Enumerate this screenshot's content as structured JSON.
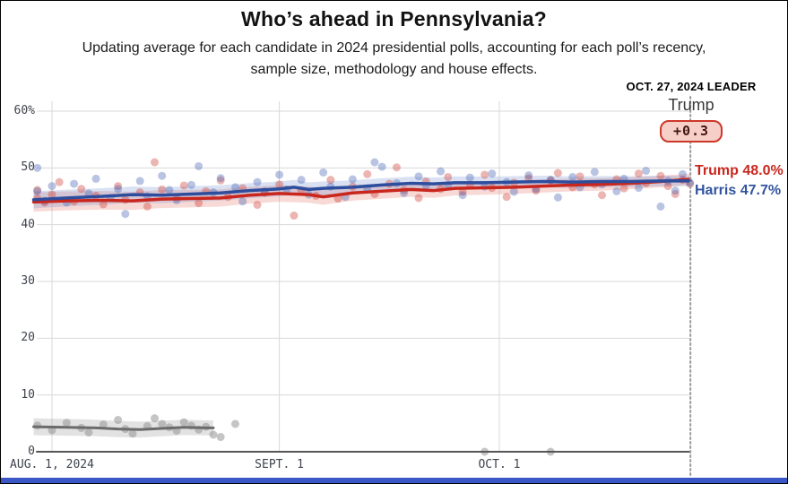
{
  "page": {
    "background": "#ffffff",
    "border_color": "#000000",
    "footer_bar_color": "#3a57c5"
  },
  "header": {
    "title": "Who’s ahead in Pennsylvania?",
    "subtitle": "Updating average for each candidate in 2024 presidential polls, accounting for each poll’s recency, sample size, methodology and house effects."
  },
  "leader": {
    "date_label": "OCT. 27, 2024 LEADER",
    "name": "Trump",
    "margin": "+0.3",
    "badge_bg": "#f7cfc9",
    "badge_border": "#cd3728",
    "badge_text_color": "#45150f"
  },
  "end_labels": {
    "trump": "Trump 48.0%",
    "harris": "Harris 47.7%",
    "trump_color": "#c9271e",
    "harris_color": "#32549f"
  },
  "chart_data": {
    "type": "line",
    "title": "Who’s ahead in Pennsylvania?",
    "grid_on": true,
    "x_axis": {
      "tick_labels": [
        "AUG. 1, 2024",
        "SEPT. 1",
        "OCT. 1"
      ],
      "tick_days": [
        0,
        31,
        61
      ],
      "start_day": -2.5,
      "end_day": 87,
      "end_marker": "dotted-line-oct-27"
    },
    "y_axis": {
      "tick_labels": [
        "0",
        "10",
        "20",
        "30",
        "40",
        "50",
        "60%"
      ],
      "tick_values": [
        0,
        10,
        20,
        30,
        40,
        50,
        60
      ],
      "range": [
        0,
        63
      ]
    },
    "colors": {
      "gridline": "#d9d9d9",
      "axis": "#565656",
      "dotted_line": "#9b9b9b"
    },
    "series": [
      {
        "name": "Trump",
        "final_value": 48.0,
        "color": "#c9271e",
        "band_color": "rgba(223,108,98,0.26)",
        "band_halfwidth_start": 1.7,
        "band_halfwidth_end": 1.0,
        "line_width": 3.5,
        "points": [
          [
            -2.5,
            44.0
          ],
          [
            2,
            44.2
          ],
          [
            7,
            44.3
          ],
          [
            11,
            44.2
          ],
          [
            15,
            44.5
          ],
          [
            19,
            44.6
          ],
          [
            23,
            44.7
          ],
          [
            27,
            45.2
          ],
          [
            31,
            45.5
          ],
          [
            35,
            45.3
          ],
          [
            37,
            44.9
          ],
          [
            41,
            45.6
          ],
          [
            45,
            45.9
          ],
          [
            49,
            46.2
          ],
          [
            52,
            46.0
          ],
          [
            55,
            46.4
          ],
          [
            59,
            46.5
          ],
          [
            63,
            46.6
          ],
          [
            67,
            46.8
          ],
          [
            71,
            47.0
          ],
          [
            75,
            47.1
          ],
          [
            79,
            47.3
          ],
          [
            83,
            47.6
          ],
          [
            87,
            48.0
          ]
        ]
      },
      {
        "name": "Harris",
        "final_value": 47.7,
        "color": "#2e4e9d",
        "band_color": "rgba(110,140,205,0.26)",
        "band_halfwidth_start": 1.5,
        "band_halfwidth_end": 0.9,
        "line_width": 3.5,
        "points": [
          [
            -2.5,
            44.4
          ],
          [
            2,
            44.7
          ],
          [
            7,
            45.0
          ],
          [
            11,
            45.3
          ],
          [
            15,
            45.2
          ],
          [
            19,
            45.4
          ],
          [
            23,
            45.6
          ],
          [
            27,
            46.0
          ],
          [
            31,
            46.3
          ],
          [
            33,
            46.6
          ],
          [
            35,
            46.2
          ],
          [
            37,
            46.4
          ],
          [
            41,
            46.6
          ],
          [
            45,
            47.0
          ],
          [
            49,
            47.3
          ],
          [
            52,
            47.2
          ],
          [
            55,
            47.4
          ],
          [
            59,
            47.4
          ],
          [
            63,
            47.5
          ],
          [
            67,
            47.6
          ],
          [
            71,
            47.5
          ],
          [
            75,
            47.6
          ],
          [
            79,
            47.6
          ],
          [
            83,
            47.7
          ],
          [
            87,
            47.7
          ]
        ]
      },
      {
        "name": "third-party",
        "final_value": 4.2,
        "color": "#6b6b6b",
        "band_color": "rgba(160,160,160,0.30)",
        "band_halfwidth_start": 1.5,
        "band_halfwidth_end": 1.3,
        "line_width": 3,
        "points": [
          [
            -2.5,
            4.4
          ],
          [
            2,
            4.3
          ],
          [
            6,
            4.2
          ],
          [
            9,
            4.0
          ],
          [
            12,
            3.9
          ],
          [
            15,
            4.1
          ],
          [
            18,
            4.3
          ],
          [
            21,
            4.2
          ],
          [
            22,
            4.2
          ]
        ]
      }
    ],
    "scatter": [
      {
        "name": "trump-polls",
        "color": "rgba(205,60,50,0.38)",
        "radius": 4.5,
        "points": [
          [
            -2,
            46.1
          ],
          [
            -2,
            44.6
          ],
          [
            -1,
            43.9
          ],
          [
            0,
            45.3
          ],
          [
            1,
            47.5
          ],
          [
            3,
            44.1
          ],
          [
            4,
            46.3
          ],
          [
            6,
            45.1
          ],
          [
            7,
            43.6
          ],
          [
            9,
            46.8
          ],
          [
            10,
            44.4
          ],
          [
            12,
            45.7
          ],
          [
            13,
            43.2
          ],
          [
            14,
            51.0
          ],
          [
            15,
            46.2
          ],
          [
            17,
            44.8
          ],
          [
            18,
            46.9
          ],
          [
            20,
            43.8
          ],
          [
            21,
            45.9
          ],
          [
            23,
            47.8
          ],
          [
            24,
            44.9
          ],
          [
            26,
            46.4
          ],
          [
            28,
            43.5
          ],
          [
            29,
            45.6
          ],
          [
            31,
            47.1
          ],
          [
            33,
            41.6
          ],
          [
            34,
            46.0
          ],
          [
            36,
            45.1
          ],
          [
            38,
            47.9
          ],
          [
            39,
            44.6
          ],
          [
            41,
            46.7
          ],
          [
            43,
            48.9
          ],
          [
            44,
            45.4
          ],
          [
            46,
            47.2
          ],
          [
            47,
            50.1
          ],
          [
            48,
            46.1
          ],
          [
            50,
            44.7
          ],
          [
            51,
            47.6
          ],
          [
            53,
            46.3
          ],
          [
            54,
            48.4
          ],
          [
            56,
            45.8
          ],
          [
            57,
            47.0
          ],
          [
            59,
            48.8
          ],
          [
            60,
            46.5
          ],
          [
            62,
            44.9
          ],
          [
            63,
            47.4
          ],
          [
            65,
            48.2
          ],
          [
            66,
            46.0
          ],
          [
            68,
            47.8
          ],
          [
            69,
            49.1
          ],
          [
            71,
            46.6
          ],
          [
            72,
            48.5
          ],
          [
            74,
            47.1
          ],
          [
            75,
            45.2
          ],
          [
            77,
            48.0
          ],
          [
            78,
            46.4
          ],
          [
            80,
            49.0
          ],
          [
            81,
            47.3
          ],
          [
            83,
            48.6
          ],
          [
            84,
            46.8
          ],
          [
            85,
            45.4
          ],
          [
            86,
            47.9
          ],
          [
            87,
            47.2
          ]
        ]
      },
      {
        "name": "harris-polls",
        "color": "rgba(70,100,180,0.38)",
        "radius": 4.5,
        "points": [
          [
            -2,
            50.0
          ],
          [
            -2,
            45.9
          ],
          [
            -1,
            44.2
          ],
          [
            0,
            46.8
          ],
          [
            2,
            43.9
          ],
          [
            3,
            47.2
          ],
          [
            5,
            45.5
          ],
          [
            6,
            48.1
          ],
          [
            8,
            44.7
          ],
          [
            9,
            46.3
          ],
          [
            10,
            41.9
          ],
          [
            12,
            47.7
          ],
          [
            13,
            45.0
          ],
          [
            15,
            48.6
          ],
          [
            16,
            46.1
          ],
          [
            17,
            44.3
          ],
          [
            19,
            47.0
          ],
          [
            20,
            50.3
          ],
          [
            22,
            45.7
          ],
          [
            23,
            48.2
          ],
          [
            25,
            46.6
          ],
          [
            26,
            44.1
          ],
          [
            28,
            47.5
          ],
          [
            29,
            45.9
          ],
          [
            31,
            48.8
          ],
          [
            32,
            46.2
          ],
          [
            34,
            47.9
          ],
          [
            35,
            45.3
          ],
          [
            37,
            49.2
          ],
          [
            38,
            46.7
          ],
          [
            40,
            44.9
          ],
          [
            41,
            48.0
          ],
          [
            43,
            46.4
          ],
          [
            44,
            51.0
          ],
          [
            45,
            50.2
          ],
          [
            47,
            47.3
          ],
          [
            48,
            45.6
          ],
          [
            50,
            48.5
          ],
          [
            51,
            46.9
          ],
          [
            53,
            49.4
          ],
          [
            54,
            47.0
          ],
          [
            56,
            45.2
          ],
          [
            57,
            48.3
          ],
          [
            59,
            46.7
          ],
          [
            60,
            49.0
          ],
          [
            62,
            47.5
          ],
          [
            63,
            45.8
          ],
          [
            65,
            48.7
          ],
          [
            66,
            46.3
          ],
          [
            68,
            47.9
          ],
          [
            69,
            44.8
          ],
          [
            71,
            48.4
          ],
          [
            72,
            46.6
          ],
          [
            74,
            49.3
          ],
          [
            75,
            47.1
          ],
          [
            77,
            45.9
          ],
          [
            78,
            48.1
          ],
          [
            80,
            46.5
          ],
          [
            81,
            49.5
          ],
          [
            83,
            43.2
          ],
          [
            84,
            47.7
          ],
          [
            85,
            46.0
          ],
          [
            86,
            48.9
          ],
          [
            87,
            47.4
          ]
        ]
      },
      {
        "name": "third-party-polls",
        "color": "rgba(150,150,150,0.55)",
        "radius": 4.5,
        "points": [
          [
            -2,
            4.6
          ],
          [
            0,
            3.8
          ],
          [
            2,
            5.1
          ],
          [
            4,
            4.2
          ],
          [
            5,
            3.4
          ],
          [
            7,
            4.8
          ],
          [
            9,
            5.6
          ],
          [
            10,
            4.0
          ],
          [
            11,
            3.2
          ],
          [
            13,
            4.5
          ],
          [
            14,
            5.9
          ],
          [
            15,
            4.9
          ],
          [
            16,
            4.3
          ],
          [
            17,
            3.7
          ],
          [
            18,
            5.2
          ],
          [
            19,
            4.6
          ],
          [
            20,
            3.9
          ],
          [
            21,
            4.4
          ],
          [
            22,
            3.0
          ],
          [
            23,
            2.6
          ],
          [
            25,
            4.9
          ],
          [
            59,
            0
          ],
          [
            68,
            0
          ]
        ]
      }
    ]
  }
}
